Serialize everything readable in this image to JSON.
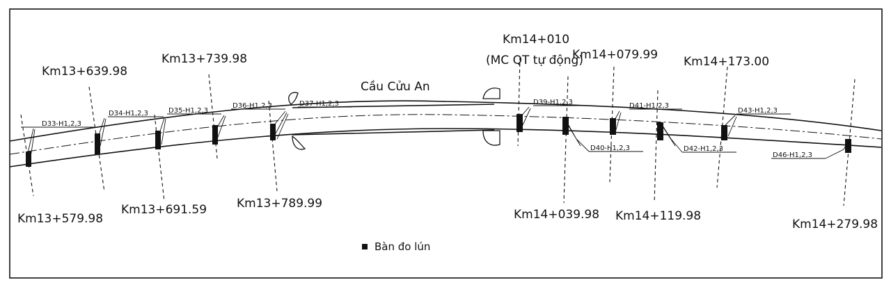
{
  "bridge_label": "Cầu Cửu An",
  "special_section": {
    "label": "Km14+010",
    "note": "(MC QT tự động)"
  },
  "stations": [
    "Km13+579.98",
    "Km13+639.98",
    "Km13+691.59",
    "Km13+739.98",
    "Km13+789.99",
    "Km14+039.98",
    "Km14+079.99",
    "Km14+119.98",
    "Km14+173.00",
    "Km14+279.98"
  ],
  "markers": [
    "D33-H1,2,3",
    "D34-H1,2,3",
    "D35-H1,2,3",
    "D36-H1,2,3",
    "D37-H1,2,3",
    "D39-H1,2,3",
    "D40-H1,2,3",
    "D41-H1,2,3",
    "D42-H1,2,3",
    "D43-H1,2,3",
    "D46-H1,2,3"
  ],
  "legend": {
    "symbol": "settlement-plate-icon",
    "label": "Bàn đo lún"
  },
  "colors": {
    "line": "#111111",
    "background": "#ffffff"
  }
}
